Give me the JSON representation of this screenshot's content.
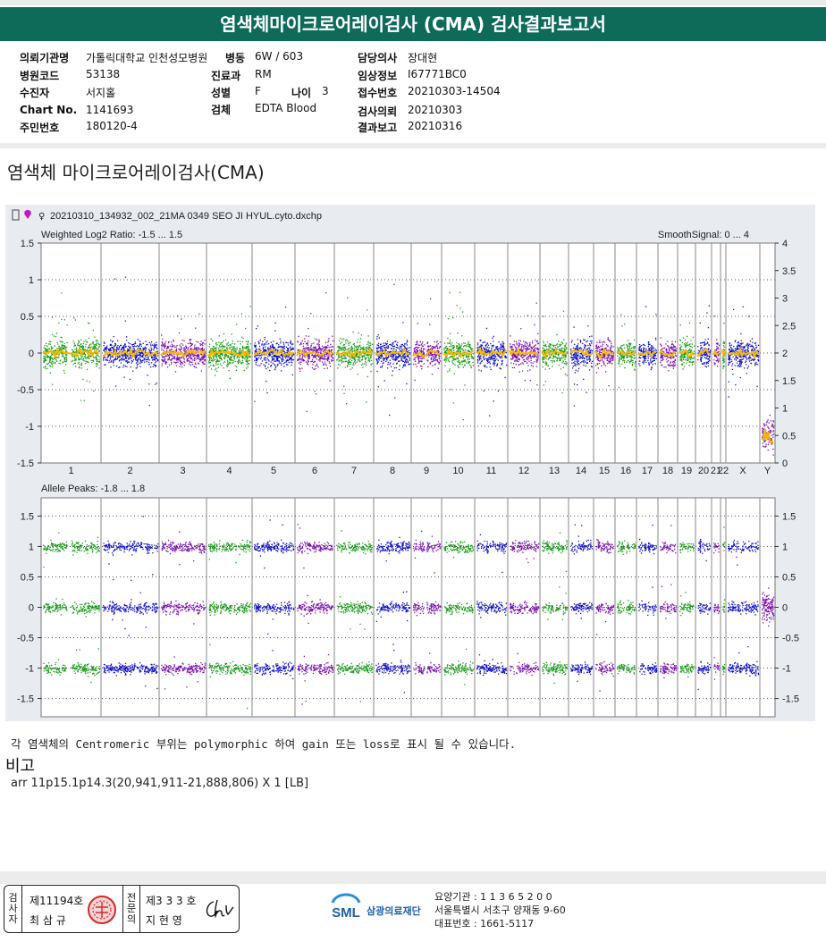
{
  "report": {
    "title": "염색체마이크로어레이검사 (CMA) 검사결과보고서"
  },
  "patient": {
    "institution_label": "의뢰기관명",
    "institution_value": "가톨릭대학교 인천성모병원",
    "ward_label": "병동",
    "ward_value": "6W / 603",
    "doctor_label": "담당의사",
    "doctor_value": "장대현",
    "hospital_code_label": "병원코드",
    "hospital_code_value": "53138",
    "dept_label": "진료과",
    "dept_value": "RM",
    "clinical_info_label": "임상정보",
    "clinical_info_value": "I67771BC0",
    "examinee_label": "수진자",
    "examinee_value": "서지홀",
    "sex_label": "성별",
    "sex_value": "F",
    "age_label": "나이",
    "age_value": "3",
    "receipt_no_label": "접수번호",
    "receipt_no_value": "20210303-14504",
    "chart_no_label": "Chart No.",
    "chart_no_value": "1141693",
    "specimen_label": "검체",
    "specimen_value": "EDTA Blood",
    "request_date_label": "검사의뢰",
    "request_date_value": "20210303",
    "rrn_label": "주민번호",
    "rrn_value": "180120-4",
    "report_date_label": "결과보고",
    "report_date_value": "20210316"
  },
  "section": {
    "title": "염색체 마이크로어레이검사(CMA)"
  },
  "chart_data": {
    "type": "scatter",
    "file_name": "20210310_134932_002_21MA 0349 SEO JI HYUL.cyto.dxchp",
    "chromosomes": [
      "1",
      "2",
      "3",
      "4",
      "5",
      "6",
      "7",
      "8",
      "9",
      "10",
      "11",
      "12",
      "13",
      "14",
      "15",
      "16",
      "17",
      "18",
      "19",
      "20",
      "21",
      "22",
      "X",
      "Y"
    ],
    "top_panel": {
      "left_label": "Weighted Log2 Ratio: -1.5 ... 1.5",
      "right_label": "SmoothSignal: 0 ... 4",
      "ylim": [
        -1.5,
        1.5
      ],
      "y2lim": [
        0,
        4
      ],
      "left_ticks": [
        "1.5",
        "1",
        "0.5",
        "0",
        "-0.5",
        "-1",
        "-1.5"
      ],
      "right_ticks": [
        "4",
        "3.5",
        "3",
        "2.5",
        "2",
        "1.5",
        "1",
        "0.5",
        "0"
      ]
    },
    "bottom_panel": {
      "left_label": "Allele Peaks: -1.8 ... 1.8",
      "ylim": [
        -1.8,
        1.8
      ],
      "left_ticks": [
        "1.5",
        "1",
        "0.5",
        "0",
        "-0.5",
        "-1",
        "-1.5"
      ],
      "right_ticks": [
        "1.5",
        "1",
        "0.5",
        "0",
        "-0.5",
        "-1",
        "-1.5"
      ],
      "peak_levels": [
        1,
        0,
        -1
      ]
    },
    "colors": {
      "green": "#1a9a1a",
      "blue": "#1010c8",
      "purple": "#7a10b0",
      "smooth": "#f5b800"
    }
  },
  "note": {
    "centromeric": "각 염색체의 Centromeric 부위는 polymorphic 하여 gain 또는 loss로 표시 될 수 있습니다."
  },
  "remarks": {
    "label": "비고",
    "result": "arr 11p15.1p14.3(20,941,911-21,888,806) X 1 [LB]"
  },
  "footer": {
    "examiner_label": [
      "검",
      "사",
      "자"
    ],
    "examiner_no": "제11194호",
    "examiner_name": "최 삼 규",
    "specialist_label": [
      "전",
      "문",
      "의"
    ],
    "specialist_no": "제3 3 3 호",
    "specialist_name": "지 현 영",
    "org_name": "삼광의료재단",
    "logo_text": "SML",
    "care_code": "요양기관 : 1 1 3 6 5 2 0 0",
    "address": "서울특별시 서초구 양재동 9-60",
    "phone": "대표번호 : 1661-5117"
  }
}
